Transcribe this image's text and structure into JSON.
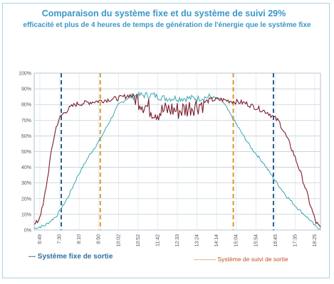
{
  "chart_data": {
    "type": "line",
    "title": "Comparaison du système fixe et du système de suivi 29%",
    "subtitle": "efficacité et plus de 4 heures de temps de génération de l'énergie que le système fixe",
    "x_tick_labels": [
      "6:49",
      "7:30",
      "8:10",
      "8:50",
      "10:02",
      "10:52",
      "11:42",
      "12:33",
      "13:24",
      "14:14",
      "15:04",
      "15:54",
      "16:45",
      "17:35",
      "18:25"
    ],
    "y_tick_labels": [
      "0%",
      "10%",
      "20%",
      "30%",
      "40%",
      "50%",
      "60%",
      "70%",
      "80%",
      "90%",
      "100%"
    ],
    "ylim": [
      0,
      100
    ],
    "grid": true,
    "x_range_hours": [
      6.82,
      19.3
    ],
    "series": [
      {
        "name": "Système fixe de sortie",
        "color": "#3aa7b3",
        "x_hours": [
          6.82,
          7.3,
          7.8,
          8.3,
          8.7,
          9.2,
          9.7,
          10.1,
          10.5,
          11.0,
          11.5,
          12.0,
          12.5,
          13.0,
          13.5,
          14.0,
          14.5,
          15.0,
          15.4,
          15.9,
          16.3,
          16.8,
          17.3,
          17.8,
          18.3,
          18.8,
          19.1,
          19.3
        ],
        "values": [
          1,
          3,
          9,
          21,
          34,
          47,
          58,
          69,
          80,
          85,
          86,
          86,
          84,
          84,
          84,
          84,
          85,
          83,
          73,
          61,
          52,
          43,
          32,
          22,
          14,
          7,
          2,
          1
        ]
      },
      {
        "name": "Système de suivi de sortie",
        "color": "#7b1c2c",
        "x_hours": [
          6.82,
          7.0,
          7.2,
          7.4,
          7.6,
          7.8,
          8.0,
          8.3,
          8.6,
          9.0,
          9.5,
          10.0,
          10.5,
          11.0,
          11.3,
          11.6,
          11.9,
          12.2,
          12.5,
          12.8,
          13.1,
          13.4,
          13.7,
          14.0,
          14.5,
          15.0,
          15.5,
          16.0,
          16.5,
          17.0,
          17.5,
          17.8,
          18.1,
          18.4,
          18.7,
          18.9,
          19.1,
          19.3
        ],
        "values": [
          3,
          6,
          15,
          33,
          53,
          67,
          73,
          77,
          80,
          81,
          82,
          83,
          84,
          86,
          84,
          80,
          77,
          75,
          76,
          77,
          76,
          77,
          79,
          80,
          83,
          83,
          82,
          81,
          78,
          75,
          69,
          60,
          50,
          38,
          24,
          14,
          5,
          1
        ]
      }
    ],
    "vertical_markers": [
      {
        "x_hour": 8.0,
        "color": "#2a5f8f",
        "style": "dashed"
      },
      {
        "x_hour": 9.7,
        "color": "#d9982a",
        "style": "dashed"
      },
      {
        "x_hour": 15.5,
        "color": "#d9982a",
        "style": "dashed"
      },
      {
        "x_hour": 17.25,
        "color": "#2a5f8f",
        "style": "dashed"
      }
    ],
    "legend": {
      "fixed_label": "--- Système fixe de sortie",
      "tracking_label": "----------- Système de suivi de sortie"
    }
  }
}
